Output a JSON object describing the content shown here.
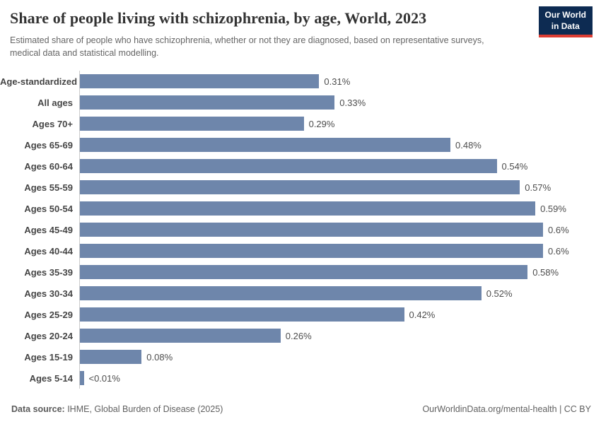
{
  "header": {
    "title": "Share of people living with schizophrenia, by age, World, 2023",
    "subtitle": "Estimated share of people who have schizophrenia, whether or not they are diagnosed, based on representative surveys, medical data and statistical modelling.",
    "logo": {
      "line1": "Our World",
      "line2": "in Data"
    }
  },
  "footer": {
    "source_label": "Data source:",
    "source_text": " IHME, Global Burden of Disease (2025)",
    "right_text": "OurWorldinData.org/mental-health | CC BY"
  },
  "colors": {
    "bar": "#6e86ab",
    "logo_navy": "#0d2b52",
    "logo_red": "#dc3d33",
    "axis_line": "#cccccc"
  },
  "chart_data": {
    "type": "bar",
    "orientation": "horizontal",
    "title": "Share of people living with schizophrenia, by age, World, 2023",
    "xlabel": "",
    "ylabel": "",
    "unit": "%",
    "xlim": [
      0,
      0.6
    ],
    "grid": false,
    "legend": false,
    "categories": [
      "Age-standardized",
      "All ages",
      "Ages 70+",
      "Ages 65-69",
      "Ages 60-64",
      "Ages 55-59",
      "Ages 50-54",
      "Ages 45-49",
      "Ages 40-44",
      "Ages 35-39",
      "Ages 30-34",
      "Ages 25-29",
      "Ages 20-24",
      "Ages 15-19",
      "Ages 5-14"
    ],
    "values": [
      0.31,
      0.33,
      0.29,
      0.48,
      0.54,
      0.57,
      0.59,
      0.6,
      0.6,
      0.58,
      0.52,
      0.42,
      0.26,
      0.08,
      0.005
    ],
    "value_labels": [
      "0.31%",
      "0.33%",
      "0.29%",
      "0.48%",
      "0.54%",
      "0.57%",
      "0.59%",
      "0.6%",
      "0.6%",
      "0.58%",
      "0.52%",
      "0.42%",
      "0.26%",
      "0.08%",
      "<0.01%"
    ]
  }
}
